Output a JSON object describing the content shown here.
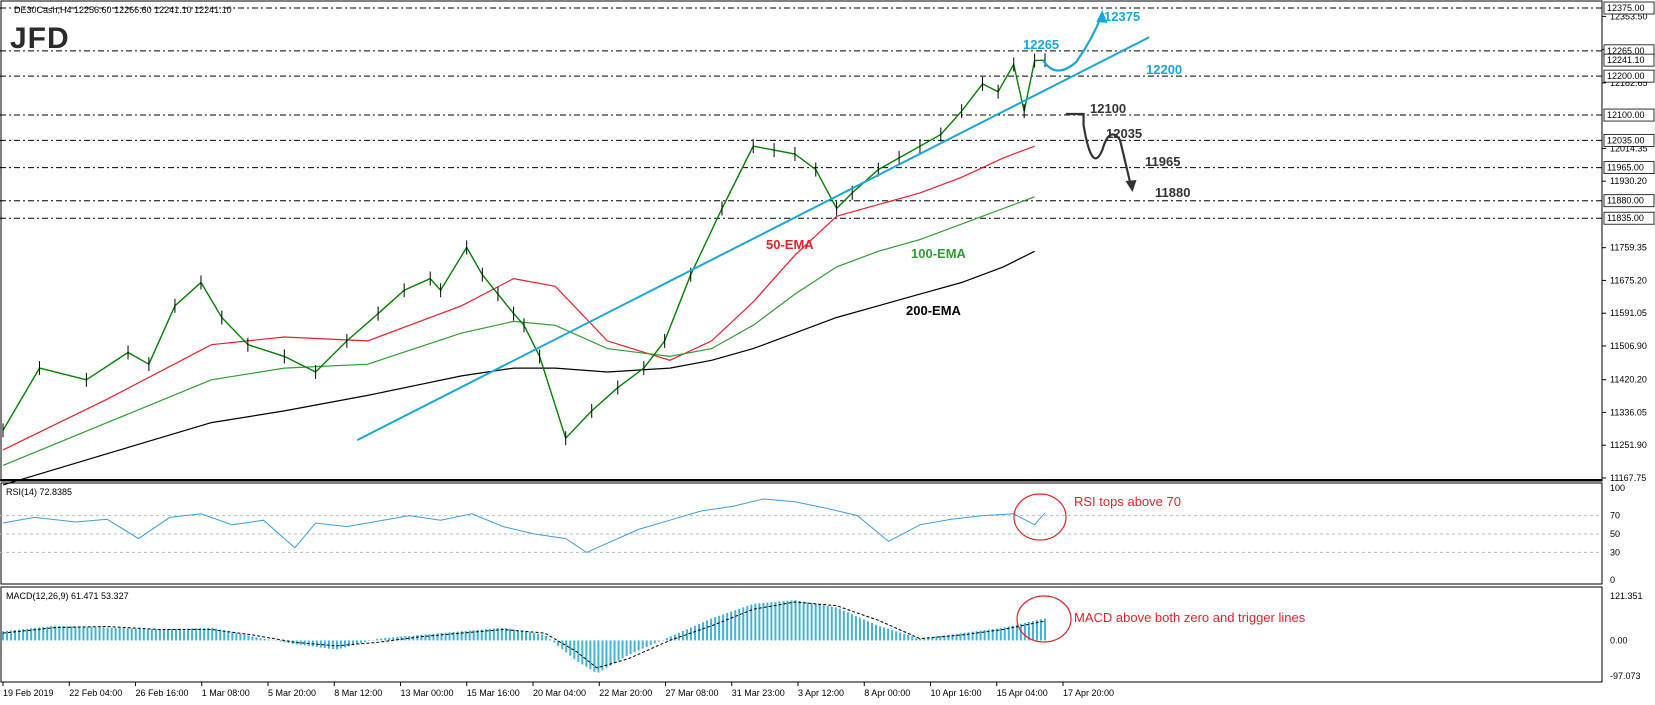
{
  "header": {
    "symbol_line": "DE30Cash,H4  12256.60 12266.60 12241.10 12241.10",
    "logo": "JFD"
  },
  "colors": {
    "price_bar": "#008000",
    "ema50": "#e8202a",
    "ema100": "#2e9e2e",
    "ema200": "#000000",
    "trend": "#1aa7d6",
    "annotation_blue": "#1aa7d6",
    "annotation_dark": "#333333",
    "rsi_line": "#3aa0d8",
    "macd_hist": "#40b4d6",
    "highlight": "#e8202a"
  },
  "chart_data": [
    {
      "type": "line",
      "panel": "price",
      "title": "",
      "ylim": [
        11167.7,
        12375.0
      ],
      "y_ticks": [
        "12353.50",
        "12268.15",
        "12182.65",
        "12014.35",
        "11930.20",
        "11759.35",
        "11675.20",
        "11591.05",
        "11506.90",
        "11420.20",
        "11336.05",
        "11251.90",
        "11167.75"
      ],
      "level_labels": [
        "12375.00",
        "12265.00",
        "12241.10",
        "12200.00",
        "12100.00",
        "12035.00",
        "11965.00",
        "11880.00",
        "11835.00"
      ],
      "horizontal_levels": [
        12375,
        12265,
        12200,
        12100,
        12035,
        11965,
        11880,
        11835
      ],
      "x_labels": [
        "19 Feb 2019",
        "22 Feb 04:00",
        "26 Feb 16:00",
        "1 Mar 08:00",
        "5 Mar 20:00",
        "8 Mar 12:00",
        "13 Mar 00:00",
        "15 Mar 16:00",
        "20 Mar 04:00",
        "22 Mar 20:00",
        "27 Mar 08:00",
        "31 Mar 23:00",
        "3 Apr 12:00",
        "8 Apr 00:00",
        "10 Apr 16:00",
        "15 Apr 04:00",
        "17 Apr 20:00"
      ],
      "price_x": [
        0,
        0.035,
        0.08,
        0.12,
        0.14,
        0.165,
        0.19,
        0.21,
        0.235,
        0.27,
        0.3,
        0.33,
        0.36,
        0.385,
        0.41,
        0.42,
        0.445,
        0.46,
        0.475,
        0.49,
        0.5,
        0.515,
        0.54,
        0.565,
        0.59,
        0.615,
        0.635,
        0.66,
        0.69,
        0.72,
        0.74,
        0.76,
        0.78,
        0.8,
        0.815,
        0.84,
        0.86,
        0.88,
        0.9,
        0.92,
        0.94,
        0.955,
        0.97,
        0.98,
        0.99,
        1.0
      ],
      "price": [
        11290,
        11450,
        11420,
        11490,
        11460,
        11610,
        11670,
        11580,
        11510,
        11480,
        11440,
        11520,
        11590,
        11650,
        11680,
        11650,
        11760,
        11690,
        11640,
        11590,
        11560,
        11480,
        11270,
        11340,
        11400,
        11450,
        11520,
        11690,
        11860,
        12020,
        12010,
        12000,
        11960,
        11860,
        11900,
        11960,
        11990,
        12020,
        12050,
        12110,
        12180,
        12160,
        12230,
        12110,
        12240,
        12241
      ],
      "series": [
        {
          "name": "50-EMA",
          "color": "#e8202a",
          "x": [
            0,
            0.1,
            0.2,
            0.27,
            0.35,
            0.44,
            0.49,
            0.53,
            0.58,
            0.64,
            0.68,
            0.72,
            0.76,
            0.8,
            0.84,
            0.88,
            0.92,
            0.96,
            0.99
          ],
          "values": [
            11240,
            11370,
            11510,
            11530,
            11520,
            11610,
            11680,
            11660,
            11520,
            11470,
            11520,
            11620,
            11740,
            11840,
            11870,
            11900,
            11940,
            11990,
            12020
          ]
        },
        {
          "name": "100-EMA",
          "color": "#2e9e2e",
          "x": [
            0,
            0.1,
            0.2,
            0.27,
            0.35,
            0.44,
            0.49,
            0.53,
            0.58,
            0.64,
            0.68,
            0.72,
            0.76,
            0.8,
            0.84,
            0.88,
            0.92,
            0.96,
            0.99
          ],
          "values": [
            11200,
            11310,
            11420,
            11450,
            11460,
            11540,
            11570,
            11560,
            11500,
            11480,
            11500,
            11560,
            11640,
            11710,
            11750,
            11780,
            11820,
            11860,
            11890
          ]
        },
        {
          "name": "200-EMA",
          "color": "#000000",
          "x": [
            0,
            0.1,
            0.2,
            0.27,
            0.35,
            0.44,
            0.49,
            0.53,
            0.58,
            0.64,
            0.68,
            0.72,
            0.76,
            0.8,
            0.84,
            0.88,
            0.92,
            0.96,
            0.99
          ],
          "values": [
            11150,
            11230,
            11310,
            11340,
            11380,
            11430,
            11450,
            11450,
            11440,
            11450,
            11470,
            11500,
            11540,
            11580,
            11610,
            11640,
            11670,
            11710,
            11750
          ]
        }
      ],
      "trendline": {
        "x": [
          0.34,
          1.1
        ],
        "values": [
          11265,
          12300
        ]
      },
      "ema_labels": [
        "50-EMA",
        "100-EMA",
        "200-EMA"
      ],
      "scenario_labels": {
        "up": [
          "12265",
          "12200",
          "12375"
        ],
        "down": [
          "12100",
          "12035",
          "11965",
          "11880"
        ]
      }
    },
    {
      "type": "line",
      "panel": "rsi",
      "title": "RSI(14) 72.8385",
      "ylim": [
        0,
        100
      ],
      "y_ticks": [
        "100",
        "70",
        "50",
        "30",
        "0"
      ],
      "x": [
        0,
        0.03,
        0.07,
        0.1,
        0.13,
        0.16,
        0.19,
        0.22,
        0.25,
        0.28,
        0.3,
        0.33,
        0.36,
        0.39,
        0.42,
        0.45,
        0.48,
        0.51,
        0.54,
        0.56,
        0.58,
        0.61,
        0.64,
        0.67,
        0.7,
        0.73,
        0.76,
        0.79,
        0.82,
        0.85,
        0.88,
        0.91,
        0.94,
        0.97,
        0.99,
        1.0
      ],
      "values": [
        62,
        68,
        63,
        66,
        45,
        68,
        72,
        60,
        65,
        35,
        62,
        58,
        64,
        70,
        65,
        72,
        58,
        50,
        45,
        30,
        40,
        55,
        65,
        75,
        80,
        88,
        85,
        78,
        70,
        42,
        60,
        66,
        70,
        72,
        60,
        73
      ],
      "annotation": "RSI tops above 70"
    },
    {
      "type": "bar",
      "panel": "macd",
      "title": "MACD(12,26,9) 61.471 53.327",
      "ylim": [
        -97.073,
        121.351
      ],
      "y_ticks": [
        "121.351",
        "0.00",
        "-97.073"
      ],
      "x": [
        0,
        0.05,
        0.1,
        0.15,
        0.2,
        0.24,
        0.28,
        0.32,
        0.36,
        0.4,
        0.44,
        0.48,
        0.52,
        0.55,
        0.57,
        0.6,
        0.64,
        0.68,
        0.72,
        0.76,
        0.8,
        0.84,
        0.88,
        0.92,
        0.96,
        1.0
      ],
      "histogram": [
        25,
        40,
        35,
        30,
        35,
        10,
        -10,
        -25,
        5,
        15,
        25,
        35,
        15,
        -55,
        -90,
        -40,
        10,
        60,
        100,
        110,
        90,
        40,
        5,
        20,
        35,
        60
      ],
      "signal": [
        20,
        35,
        38,
        30,
        30,
        15,
        -5,
        -15,
        -5,
        10,
        20,
        30,
        20,
        -30,
        -75,
        -50,
        0,
        40,
        85,
        105,
        95,
        55,
        5,
        15,
        30,
        53
      ],
      "annotation": "MACD above both zero and trigger lines"
    }
  ]
}
